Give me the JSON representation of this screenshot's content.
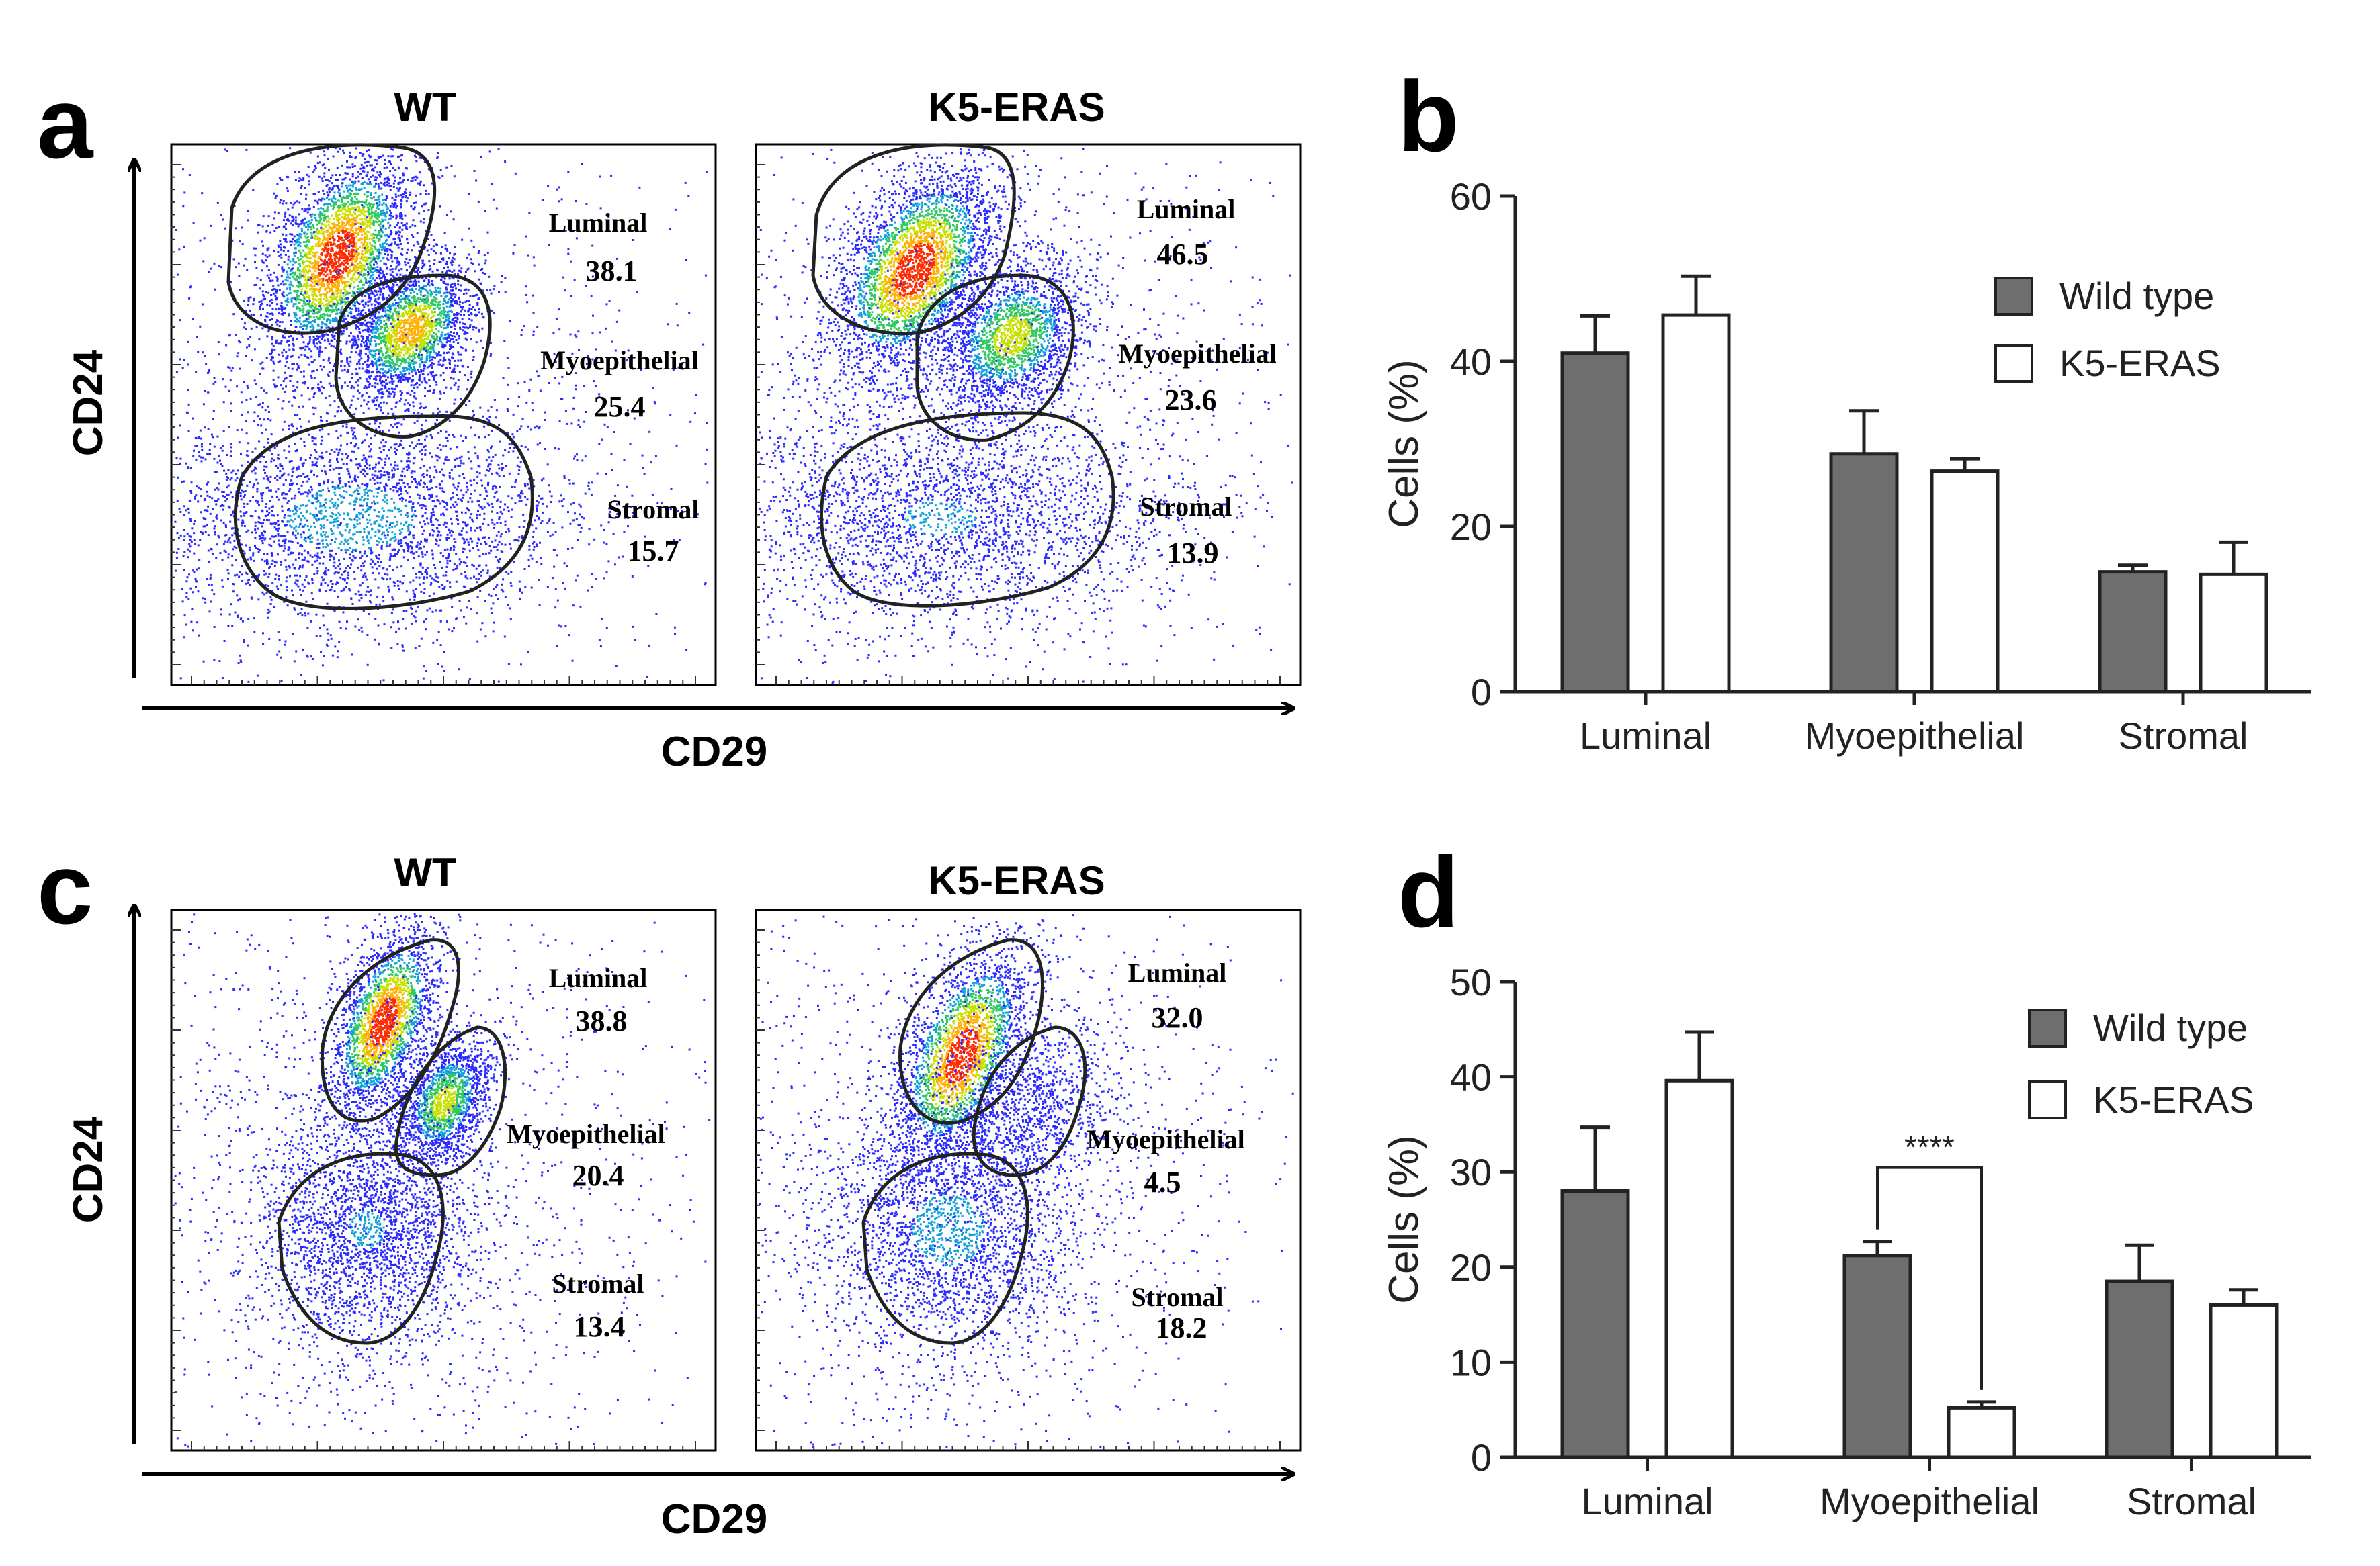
{
  "panels": {
    "a": {
      "letter": "a",
      "plots": [
        {
          "title": "WT",
          "gates": [
            {
              "name": "Luminal",
              "value": "38.1"
            },
            {
              "name": "Myoepithelial",
              "value": "25.4"
            },
            {
              "name": "Stromal",
              "value": "15.7"
            }
          ]
        },
        {
          "title": "K5-ERAS",
          "gates": [
            {
              "name": "Luminal",
              "value": "46.5"
            },
            {
              "name": "Myoepithelial",
              "value": "23.6"
            },
            {
              "name": "Stromal",
              "value": "13.9"
            }
          ]
        }
      ],
      "xlabel": "CD29",
      "ylabel": "CD24"
    },
    "c": {
      "letter": "c",
      "plots": [
        {
          "title": "WT",
          "gates": [
            {
              "name": "Luminal",
              "value": "38.8"
            },
            {
              "name": "Myoepithelial",
              "value": "20.4"
            },
            {
              "name": "Stromal",
              "value": "13.4"
            }
          ]
        },
        {
          "title": "K5-ERAS",
          "gates": [
            {
              "name": "Luminal",
              "value": "32.0"
            },
            {
              "name": "Myoepithelial",
              "value": "4.5"
            },
            {
              "name": "Stromal",
              "value": "18.2"
            }
          ]
        }
      ],
      "xlabel": "CD29",
      "ylabel": "CD24"
    },
    "b": {
      "letter": "b"
    },
    "d": {
      "letter": "d"
    }
  },
  "colors": {
    "wild_type_fill": "#6e6e6e",
    "k5_fill": "#ffffff",
    "axis": "#222222",
    "density_low": "#1a1aff",
    "density_high": "#ff2200"
  },
  "chart_data": [
    {
      "panel": "a",
      "type": "scatter",
      "description_kind": "flow-cytometry density plots",
      "xlabel": "CD29",
      "ylabel": "CD24",
      "groups": [
        "WT",
        "K5-ERAS"
      ],
      "gates": [
        "Luminal",
        "Myoepithelial",
        "Stromal"
      ],
      "series": [
        {
          "name": "WT",
          "values": [
            38.1,
            25.4,
            15.7
          ]
        },
        {
          "name": "K5-ERAS",
          "values": [
            46.5,
            23.6,
            13.9
          ]
        }
      ]
    },
    {
      "panel": "b",
      "type": "bar",
      "categories": [
        "Luminal",
        "Myoepithelial",
        "Stromal"
      ],
      "series": [
        {
          "name": "Wild type",
          "values": [
            41,
            28.8,
            14.5
          ],
          "errors": [
            4.5,
            5.2,
            0.8
          ]
        },
        {
          "name": "K5-ERAS",
          "values": [
            45.6,
            26.7,
            14.2
          ],
          "errors": [
            4.7,
            1.5,
            3.9
          ]
        }
      ],
      "xlabel": "",
      "ylabel": "Cells (%)",
      "ylim": [
        0,
        60
      ],
      "yticks": [
        0,
        20,
        40,
        60
      ],
      "legend": "top-right",
      "grid": false
    },
    {
      "panel": "c",
      "type": "scatter",
      "description_kind": "flow-cytometry density plots",
      "xlabel": "CD29",
      "ylabel": "CD24",
      "groups": [
        "WT",
        "K5-ERAS"
      ],
      "gates": [
        "Luminal",
        "Myoepithelial",
        "Stromal"
      ],
      "series": [
        {
          "name": "WT",
          "values": [
            38.8,
            20.4,
            13.4
          ]
        },
        {
          "name": "K5-ERAS",
          "values": [
            32.0,
            4.5,
            18.2
          ]
        }
      ]
    },
    {
      "panel": "d",
      "type": "bar",
      "categories": [
        "Luminal",
        "Myoepithelial",
        "Stromal"
      ],
      "series": [
        {
          "name": "Wild type",
          "values": [
            28,
            21.2,
            18.5
          ],
          "errors": [
            6.7,
            1.5,
            3.8
          ]
        },
        {
          "name": "K5-ERAS",
          "values": [
            39.6,
            5.2,
            16
          ],
          "errors": [
            5.1,
            0.6,
            1.6
          ]
        }
      ],
      "xlabel": "",
      "ylabel": "Cells (%)",
      "ylim": [
        0,
        50
      ],
      "yticks": [
        0,
        10,
        20,
        30,
        40,
        50
      ],
      "legend": "top-right",
      "grid": false,
      "annotations": [
        {
          "text": "****",
          "between": [
            "Myoepithelial:Wild type",
            "Myoepithelial:K5-ERAS"
          ]
        }
      ]
    }
  ]
}
